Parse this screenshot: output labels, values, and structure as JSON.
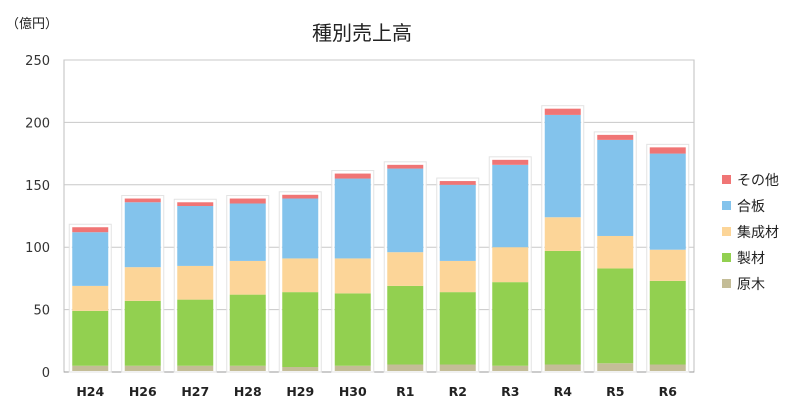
{
  "chart_data": {
    "type": "bar",
    "stacked": true,
    "title": "種別売上高",
    "unit_label": "（億円）",
    "categories": [
      "H24",
      "H26",
      "H27",
      "H28",
      "H29",
      "H30",
      "R1",
      "R2",
      "R3",
      "R4",
      "R5",
      "R6"
    ],
    "series": [
      {
        "name": "原木",
        "color": "#c4bd97",
        "values": [
          5,
          5,
          5,
          5,
          4,
          5,
          6,
          6,
          5,
          6,
          7,
          6
        ]
      },
      {
        "name": "製材",
        "color": "#92d050",
        "values": [
          44,
          52,
          53,
          57,
          60,
          58,
          63,
          58,
          67,
          91,
          76,
          67
        ]
      },
      {
        "name": "集成材",
        "color": "#fcd598",
        "values": [
          20,
          27,
          27,
          27,
          27,
          28,
          27,
          25,
          28,
          27,
          26,
          25
        ]
      },
      {
        "name": "合板",
        "color": "#83c3ec",
        "values": [
          43,
          52,
          48,
          46,
          48,
          64,
          67,
          61,
          66,
          82,
          77,
          77
        ]
      },
      {
        "name": "その他",
        "color": "#f07575",
        "values": [
          4,
          3,
          3,
          4,
          3,
          4,
          3,
          3,
          4,
          5,
          4,
          5
        ]
      }
    ],
    "ylim": [
      0,
      250
    ],
    "yticks": [
      0,
      50,
      100,
      150,
      200,
      250
    ],
    "grid": true,
    "legend_position": "right"
  }
}
